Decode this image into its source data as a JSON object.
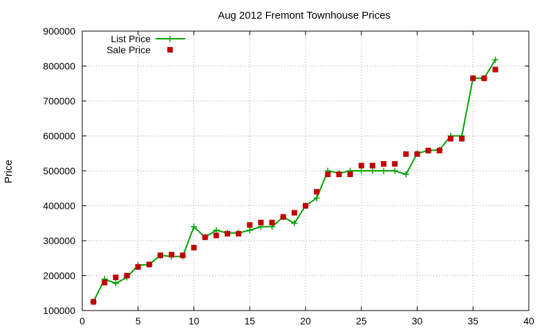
{
  "chart_data": {
    "type": "line",
    "title": "Aug 2012 Fremont Townhouse Prices",
    "xlabel": "",
    "ylabel": "Price",
    "xlim": [
      0,
      40
    ],
    "ylim": [
      100000,
      900000
    ],
    "x_ticks": [
      0,
      5,
      10,
      15,
      20,
      25,
      30,
      35,
      40
    ],
    "y_ticks": [
      100000,
      200000,
      300000,
      400000,
      500000,
      600000,
      700000,
      800000,
      900000
    ],
    "grid": true,
    "legend_position": "top-left",
    "series": [
      {
        "name": "List Price",
        "style": "line-with-plus",
        "color": "#00a000",
        "x": [
          1,
          2,
          3,
          4,
          5,
          6,
          7,
          8,
          9,
          10,
          11,
          12,
          13,
          14,
          15,
          16,
          17,
          18,
          19,
          20,
          21,
          22,
          23,
          24,
          25,
          26,
          27,
          28,
          29,
          30,
          31,
          32,
          33,
          34,
          35,
          36,
          37
        ],
        "values": [
          125000,
          190000,
          178000,
          195000,
          230000,
          232000,
          258000,
          255000,
          255000,
          340000,
          310000,
          330000,
          322000,
          322000,
          330000,
          340000,
          340000,
          368000,
          350000,
          400000,
          422000,
          500000,
          493000,
          500000,
          500000,
          500000,
          500000,
          500000,
          490000,
          550000,
          558000,
          560000,
          600000,
          600000,
          765000,
          765000,
          818000
        ]
      },
      {
        "name": "Sale Price",
        "style": "square-markers",
        "color": "#c00000",
        "x": [
          1,
          2,
          3,
          4,
          5,
          6,
          7,
          8,
          9,
          10,
          11,
          12,
          13,
          14,
          15,
          16,
          17,
          18,
          19,
          20,
          21,
          22,
          23,
          24,
          25,
          26,
          27,
          28,
          29,
          30,
          31,
          32,
          33,
          34,
          35,
          36,
          37
        ],
        "values": [
          125000,
          180000,
          195000,
          200000,
          225000,
          232000,
          258000,
          260000,
          258000,
          280000,
          310000,
          315000,
          320000,
          320000,
          345000,
          352000,
          352000,
          368000,
          380000,
          400000,
          440000,
          490000,
          490000,
          490000,
          515000,
          515000,
          520000,
          520000,
          548000,
          548000,
          558000,
          558000,
          592000,
          592000,
          765000,
          765000,
          790000
        ]
      }
    ]
  }
}
